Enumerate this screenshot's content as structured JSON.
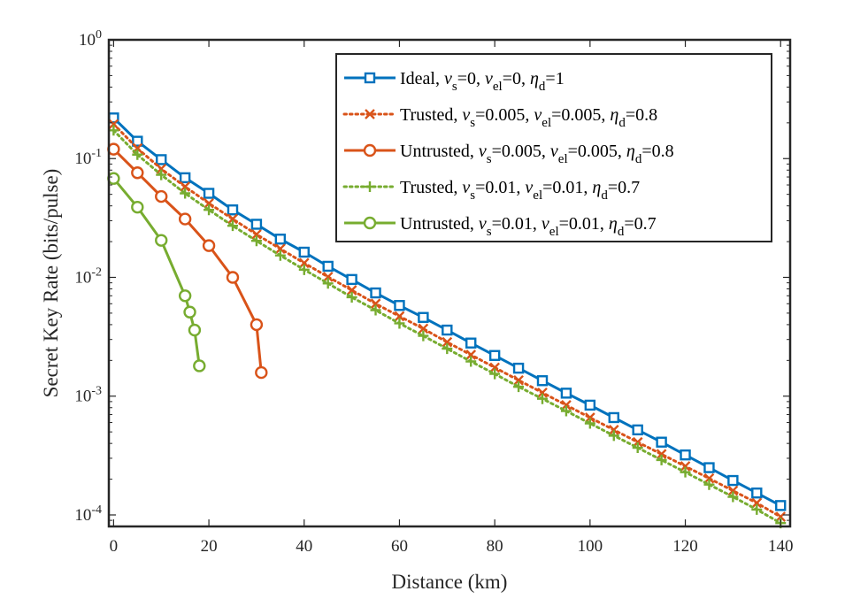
{
  "chart_data": {
    "type": "line",
    "xlabel": "Distance (km)",
    "ylabel": "Secret Key Rate (bits/pulse)",
    "xlim": [
      -1,
      142
    ],
    "ylim": [
      8e-05,
      1
    ],
    "yscale": "log",
    "grid": false,
    "legend_position": "top-right",
    "x_ticks": [
      0,
      20,
      40,
      60,
      80,
      100,
      120,
      140
    ],
    "x_tick_labels": [
      "0",
      "20",
      "40",
      "60",
      "80",
      "100",
      "120",
      "140"
    ],
    "y_ticks": [
      0.0001,
      0.001,
      0.01,
      0.1,
      1
    ],
    "y_tick_labels": [
      {
        "base": "10",
        "exp": "-4"
      },
      {
        "base": "10",
        "exp": "-3"
      },
      {
        "base": "10",
        "exp": "-2"
      },
      {
        "base": "10",
        "exp": "-1"
      },
      {
        "base": "10",
        "exp": "0"
      }
    ],
    "series": [
      {
        "legend": {
          "label": "Ideal",
          "nu_s": "0",
          "nu_el": "0",
          "eta_d": "1"
        },
        "color": "#0072BD",
        "linestyle": "solid",
        "marker": "square",
        "x": [
          0,
          5,
          10,
          15,
          20,
          25,
          30,
          35,
          40,
          45,
          50,
          55,
          60,
          65,
          70,
          75,
          80,
          85,
          90,
          95,
          100,
          105,
          110,
          115,
          120,
          125,
          130,
          135,
          140
        ],
        "y": [
          0.22,
          0.14,
          0.098,
          0.069,
          0.051,
          0.037,
          0.028,
          0.021,
          0.0163,
          0.0124,
          0.0096,
          0.0074,
          0.0058,
          0.0046,
          0.0036,
          0.0028,
          0.0022,
          0.00172,
          0.00135,
          0.00106,
          0.00084,
          0.00066,
          0.00052,
          0.00041,
          0.00032,
          0.00025,
          0.000195,
          0.000153,
          0.00012
        ]
      },
      {
        "legend": {
          "label": "Trusted",
          "nu_s": "0.005",
          "nu_el": "0.005",
          "eta_d": "0.8"
        },
        "color": "#D95319",
        "linestyle": "dotted",
        "marker": "x",
        "x": [
          0,
          5,
          10,
          15,
          20,
          25,
          30,
          35,
          40,
          45,
          50,
          55,
          60,
          65,
          70,
          75,
          80,
          85,
          90,
          95,
          100,
          105,
          110,
          115,
          120,
          125,
          130,
          135,
          140
        ],
        "y": [
          0.195,
          0.122,
          0.082,
          0.058,
          0.042,
          0.031,
          0.023,
          0.0174,
          0.0132,
          0.0101,
          0.0078,
          0.006,
          0.0047,
          0.0037,
          0.00285,
          0.00223,
          0.00174,
          0.00136,
          0.00107,
          0.00084,
          0.00066,
          0.00052,
          0.00041,
          0.000325,
          0.000257,
          0.000203,
          0.00016,
          0.000126,
          9.65e-05
        ]
      },
      {
        "legend": {
          "label": "Untrusted",
          "nu_s": "0.005",
          "nu_el": "0.005",
          "eta_d": "0.8"
        },
        "color": "#D95319",
        "linestyle": "solid",
        "marker": "circle",
        "x": [
          0,
          5,
          10,
          15,
          20,
          25,
          30,
          31
        ],
        "y": [
          0.12,
          0.076,
          0.048,
          0.031,
          0.0185,
          0.01,
          0.004,
          0.00158
        ]
      },
      {
        "legend": {
          "label": "Trusted",
          "nu_s": "0.01",
          "nu_el": "0.01",
          "eta_d": "0.7"
        },
        "color": "#77AC30",
        "linestyle": "dotted",
        "marker": "plus",
        "x": [
          0,
          5,
          10,
          15,
          20,
          25,
          30,
          35,
          40,
          45,
          50,
          55,
          60,
          65,
          70,
          75,
          80,
          85,
          90,
          95,
          100,
          105,
          110,
          115,
          120,
          125,
          130,
          135,
          140
        ],
        "y": [
          0.173,
          0.108,
          0.073,
          0.051,
          0.037,
          0.0272,
          0.0203,
          0.0153,
          0.0116,
          0.0089,
          0.0068,
          0.0053,
          0.0041,
          0.00322,
          0.00251,
          0.00196,
          0.00154,
          0.0012,
          0.00095,
          0.00075,
          0.00059,
          0.000465,
          0.000368,
          0.00029,
          0.000229,
          0.00018,
          0.000142,
          0.000111,
          8.55e-05
        ]
      },
      {
        "legend": {
          "label": "Untrusted",
          "nu_s": "0.01",
          "nu_el": "0.01",
          "eta_d": "0.7"
        },
        "color": "#77AC30",
        "linestyle": "solid",
        "marker": "circle",
        "x": [
          0,
          5,
          10,
          15,
          16,
          17,
          18
        ],
        "y": [
          0.068,
          0.039,
          0.0205,
          0.007,
          0.0051,
          0.0036,
          0.0018
        ]
      }
    ]
  }
}
